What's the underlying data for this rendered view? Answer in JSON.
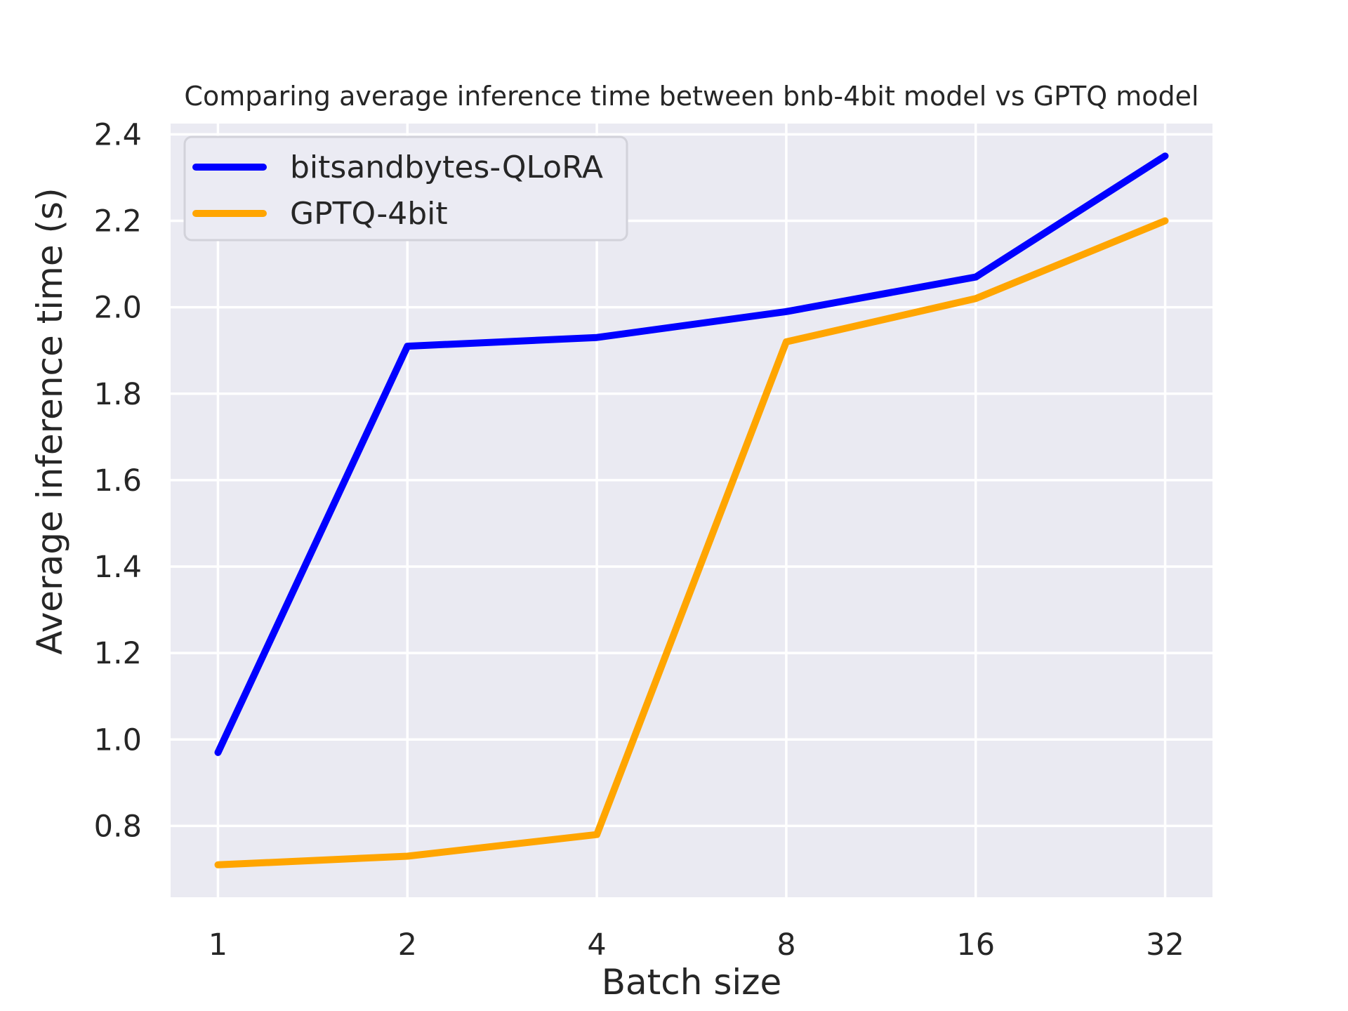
{
  "chart_data": {
    "type": "line",
    "title": "Comparing average inference time between bnb-4bit model vs GPTQ model",
    "xlabel": "Batch size",
    "ylabel": "Average inference time (s)",
    "x": [
      1,
      2,
      4,
      8,
      16,
      32
    ],
    "xscale": "log2",
    "series": [
      {
        "name": "bitsandbytes-QLoRA",
        "color": "#0000ff",
        "values": [
          0.97,
          1.91,
          1.93,
          1.99,
          2.07,
          2.35
        ]
      },
      {
        "name": "GPTQ-4bit",
        "color": "#ffa500",
        "values": [
          0.71,
          0.73,
          0.78,
          1.92,
          2.02,
          2.2
        ]
      }
    ],
    "yticks": [
      "0.8",
      "1.0",
      "1.2",
      "1.4",
      "1.6",
      "1.8",
      "2.0",
      "2.2",
      "2.4"
    ],
    "ytick_values": [
      0.8,
      1.0,
      1.2,
      1.4,
      1.6,
      1.8,
      2.0,
      2.2,
      2.4
    ],
    "ylim": [
      0.635,
      2.425
    ],
    "xlim_log2": [
      -0.25,
      5.25
    ],
    "grid": true,
    "legend_position": "upper left",
    "colors": {
      "plot_bg": "#eaeaf2",
      "grid": "#ffffff",
      "text": "#262626",
      "line_width": 10,
      "legend_bg": "#ebebf3",
      "legend_border": "#d2d2da",
      "figure_bg": "#ffffff"
    }
  }
}
